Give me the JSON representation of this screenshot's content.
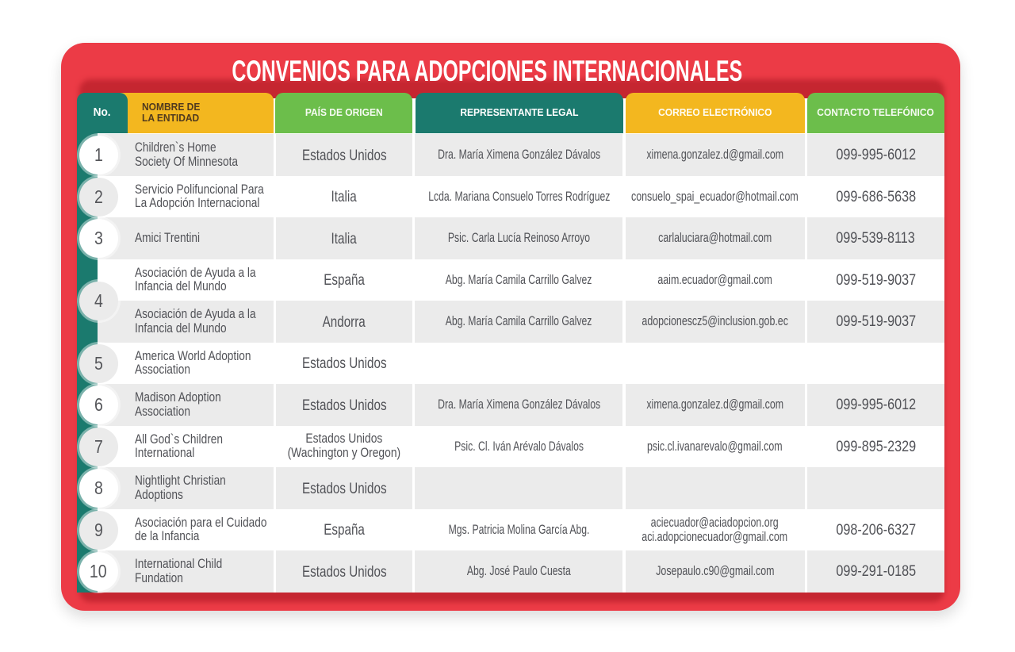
{
  "title": "CONVENIOS PARA ADOPCIONES INTERNACIONALES",
  "colors": {
    "card_red": "#EC3B46",
    "teal": "#1B7A6E",
    "yellow": "#F3B71F",
    "green": "#6CBE4B",
    "stripe_gray": "#EBEBEB",
    "stripe_white": "#FFFFFF",
    "body_text": "#515257",
    "nombre_header_text": "#503A1F"
  },
  "table": {
    "columns": [
      {
        "id": "no",
        "label": "No."
      },
      {
        "id": "nombre",
        "label": "NOMBRE DE\nLA ENTIDAD"
      },
      {
        "id": "pais",
        "label": "PAÍS DE ORIGEN"
      },
      {
        "id": "representante",
        "label": "REPRESENTANTE LEGAL"
      },
      {
        "id": "correo",
        "label": "CORREO ELECTRÓNICO"
      },
      {
        "id": "contacto",
        "label": "CONTACTO TELEFÓNICO"
      }
    ],
    "entities": [
      {
        "no": "1",
        "rows": [
          {
            "nombre": "Children`s Home\nSociety Of Minnesota",
            "pais": "Estados Unidos",
            "representante": "Dra. María Ximena González Dávalos",
            "correo": "ximena.gonzalez.d@gmail.com",
            "telefono": "099-995-6012"
          }
        ]
      },
      {
        "no": "2",
        "rows": [
          {
            "nombre": "Servicio Polifuncional Para\nLa Adopción Internacional",
            "pais": "Italia",
            "representante": "Lcda. Mariana Consuelo Torres Rodríguez",
            "correo": "consuelo_spai_ecuador@hotmail.com",
            "telefono": "099-686-5638"
          }
        ]
      },
      {
        "no": "3",
        "rows": [
          {
            "nombre": "Amici Trentini",
            "pais": "Italia",
            "representante": "Psic. Carla Lucía Reinoso Arroyo",
            "correo": "carlaluciara@hotmail.com",
            "telefono": "099-539-8113"
          }
        ]
      },
      {
        "no": "4",
        "rows": [
          {
            "nombre": "Asociación de Ayuda a la\nInfancia del Mundo",
            "pais": "España",
            "representante": "Abg. María Camila Carrillo Galvez",
            "correo": "aaim.ecuador@gmail.com",
            "telefono": "099-519-9037"
          },
          {
            "nombre": "Asociación de Ayuda a la\nInfancia del Mundo",
            "pais": "Andorra",
            "representante": "Abg. María Camila Carrillo Galvez",
            "correo": "adopcionescz5@inclusion.gob.ec",
            "telefono": "099-519-9037"
          }
        ]
      },
      {
        "no": "5",
        "rows": [
          {
            "nombre": "America World Adoption\nAssociation",
            "pais": "Estados Unidos",
            "representante": "",
            "correo": "",
            "telefono": ""
          }
        ]
      },
      {
        "no": "6",
        "rows": [
          {
            "nombre": "Madison Adoption\nAssociation",
            "pais": "Estados Unidos",
            "representante": "Dra. María Ximena González Dávalos",
            "correo": "ximena.gonzalez.d@gmail.com",
            "telefono": "099-995-6012"
          }
        ]
      },
      {
        "no": "7",
        "rows": [
          {
            "nombre": "All God`s Children\nInternational",
            "pais": "Estados Unidos\n(Wachington y Oregon)",
            "pais_small": true,
            "representante": "Psic. Cl. Iván Arévalo Dávalos",
            "correo": "psic.cl.ivanarevalo@gmail.com",
            "telefono": "099-895-2329"
          }
        ]
      },
      {
        "no": "8",
        "rows": [
          {
            "nombre": "Nightlight Christian\nAdoptions",
            "pais": "Estados Unidos",
            "representante": "",
            "correo": "",
            "telefono": ""
          }
        ]
      },
      {
        "no": "9",
        "rows": [
          {
            "nombre": "Asociación para el Cuidado\nde la Infancia",
            "pais": "España",
            "representante": "Mgs. Patricia Molina García Abg.",
            "correo": "aciecuador@aciadopcion.org\naci.adopcionecuador@gmail.com",
            "telefono": "098-206-6327"
          }
        ]
      },
      {
        "no": "10",
        "rows": [
          {
            "nombre": "International Child\nFundation",
            "pais": "Estados Unidos",
            "representante": "Abg. José Paulo Cuesta",
            "correo": "Josepaulo.c90@gmail.com",
            "telefono": "099-291-0185"
          }
        ]
      }
    ]
  }
}
